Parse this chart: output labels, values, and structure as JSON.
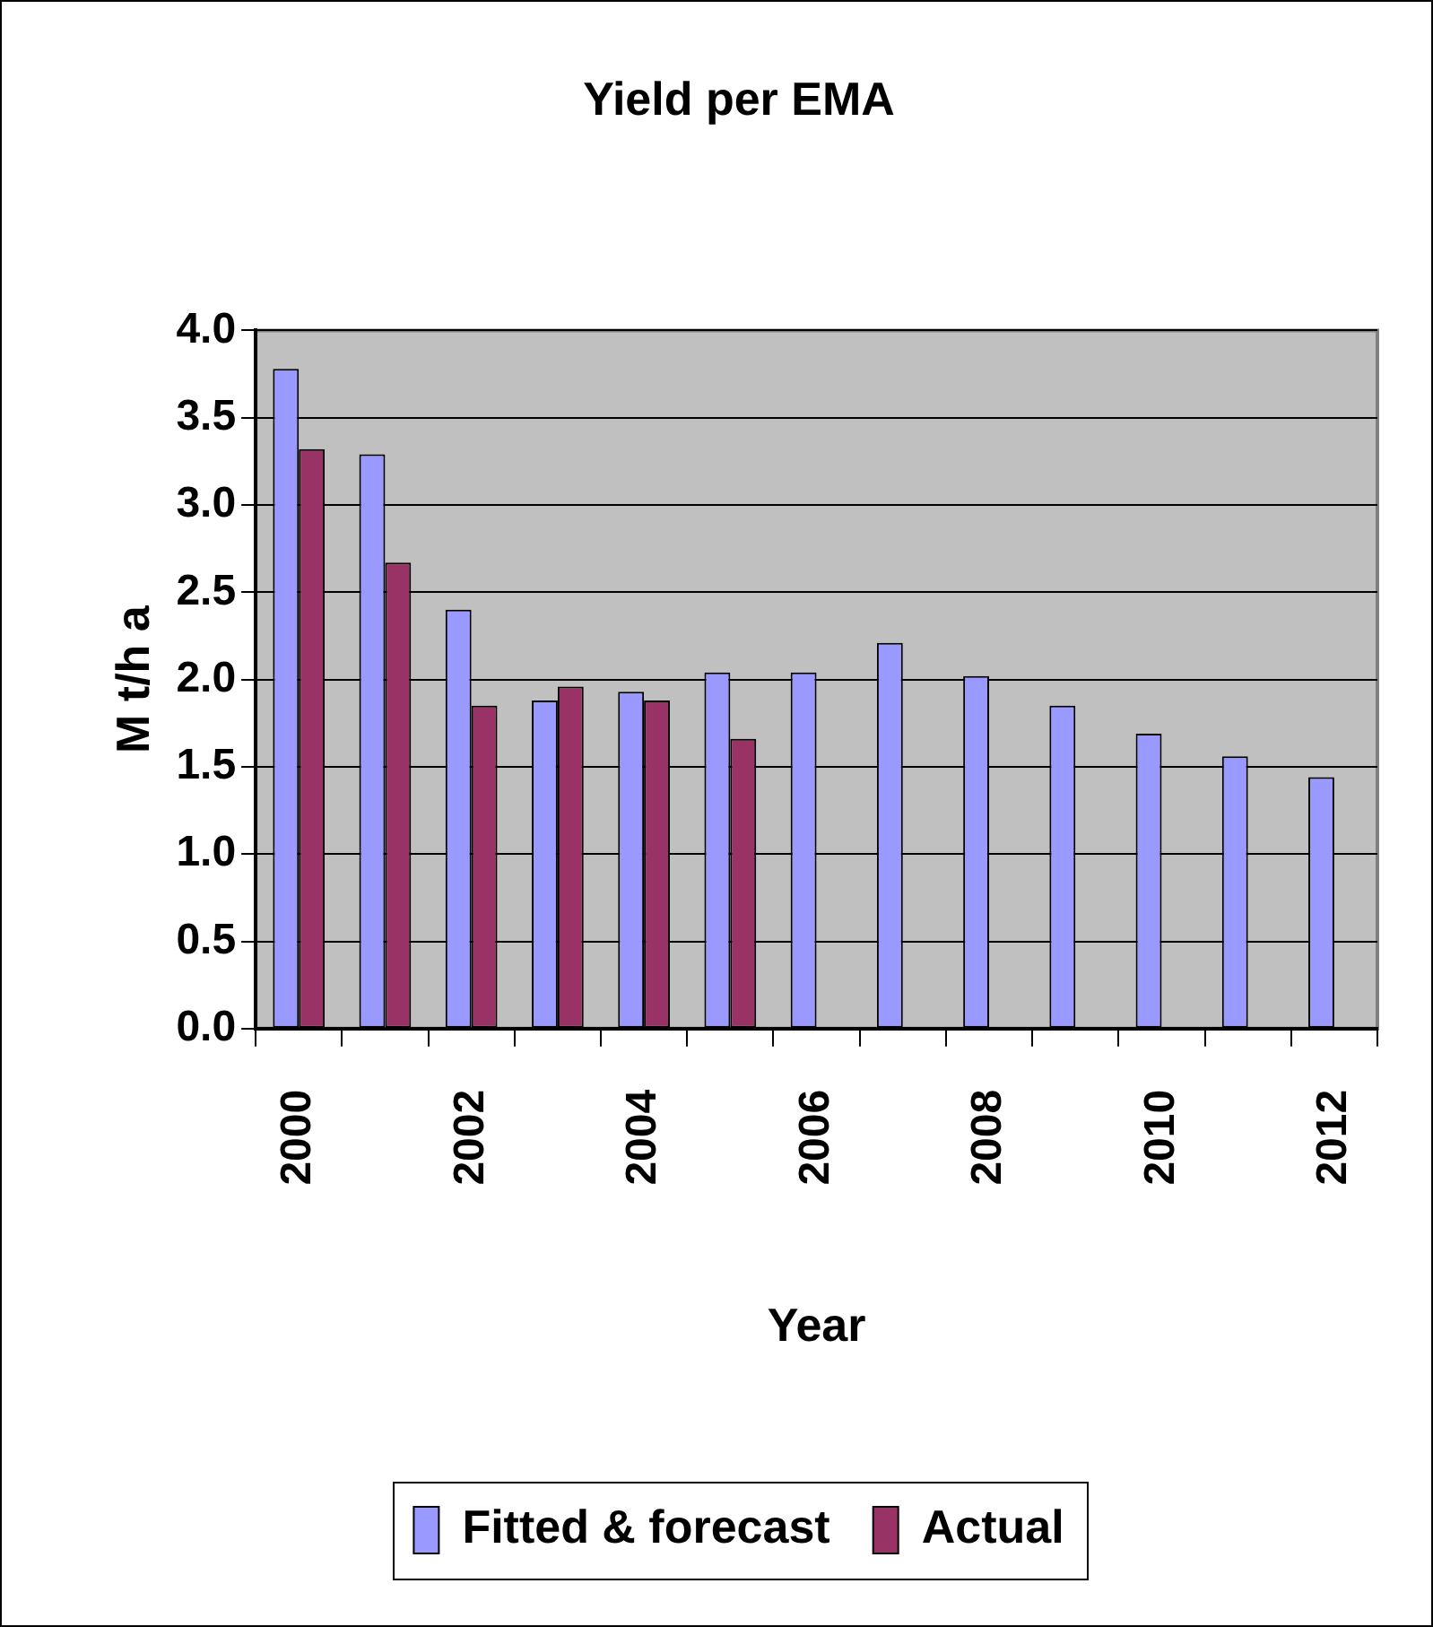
{
  "chart_data": {
    "type": "bar",
    "title": "Yield per EMA",
    "xlabel": "Year",
    "ylabel": "M t/h a",
    "categories": [
      "2000",
      null,
      "2002",
      null,
      "2004",
      null,
      "2006",
      null,
      "2008",
      null,
      "2010",
      null,
      "2012"
    ],
    "series": [
      {
        "name": "Fitted & forecast",
        "color": "#9999ff",
        "values": [
          3.78,
          3.29,
          2.4,
          1.88,
          1.93,
          2.04,
          2.04,
          2.21,
          2.02,
          1.85,
          1.69,
          1.56,
          1.44
        ]
      },
      {
        "name": "Actual",
        "color": "#993366",
        "values": [
          3.32,
          2.67,
          1.85,
          1.96,
          1.88,
          1.66,
          null,
          null,
          null,
          null,
          null,
          null,
          null
        ]
      }
    ],
    "ylim": [
      0,
      4
    ],
    "yticks": [
      {
        "value": 0,
        "label": "0.0"
      },
      {
        "value": 0.5,
        "label": "0.5"
      },
      {
        "value": 1,
        "label": "1.0"
      },
      {
        "value": 1.5,
        "label": "1.5"
      },
      {
        "value": 2,
        "label": "2.0"
      },
      {
        "value": 2.5,
        "label": "2.5"
      },
      {
        "value": 3,
        "label": "3.0"
      },
      {
        "value": 3.5,
        "label": "3.5"
      },
      {
        "value": 4,
        "label": "4.0"
      }
    ],
    "grid": "y",
    "legend": "bottom"
  }
}
